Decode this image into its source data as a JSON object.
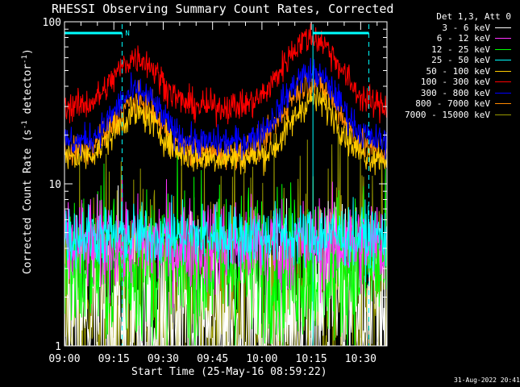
{
  "page": {
    "title": "RHESSI Observing Summary Count Rates, Corrected",
    "timestamp": "31-Aug-2022 20:41"
  },
  "chart_data": {
    "type": "line",
    "title": "RHESSI Observing Summary Count Rates, Corrected",
    "xlabel": "Start Time (25-May-16 08:59:22)",
    "ylabel_main": "Corrected Count Rate (s",
    "ylabel_sup1": "-1",
    "ylabel_mid": " detector",
    "ylabel_sup2": "-1",
    "ylabel_end": ")",
    "yscale": "log",
    "ylim": [
      1,
      100
    ],
    "xlim_minutes": [
      0,
      98
    ],
    "x_ticks": [
      "09:00",
      "09:15",
      "09:30",
      "09:45",
      "10:00",
      "10:15",
      "10:30"
    ],
    "x_tick_minutes": [
      0,
      15,
      30,
      45,
      60,
      75,
      90
    ],
    "y_ticks": [
      "1",
      "10",
      "100"
    ],
    "y_tick_values": [
      1,
      10,
      100
    ],
    "legend_title": "Det 1,3, Att 0",
    "legend_position": "top-right",
    "night_marker": "N",
    "night_intervals_minutes": [
      [
        0,
        17.5
      ],
      [
        75.5,
        92.5
      ]
    ],
    "series": [
      {
        "name": "3 - 6 keV",
        "color": "#ffffff",
        "base": 1.4,
        "peaks": [
          [
            27,
            1.5,
            6
          ],
          [
            82,
            2.5,
            6
          ]
        ],
        "noise": 0.35
      },
      {
        "name": "6 - 12 keV",
        "color": "#ff33ff",
        "base": 4.2,
        "peaks": [
          [
            22,
            1.4,
            6
          ],
          [
            75,
            1.8,
            5
          ]
        ],
        "noise": 0.15
      },
      {
        "name": "12 - 25 keV",
        "color": "#00ff00",
        "base": 3.2,
        "peaks": [
          [
            25,
            1.3,
            7
          ],
          [
            78,
            2.6,
            6
          ]
        ],
        "noise": 0.25
      },
      {
        "name": "25 - 50 keV",
        "color": "#00ffff",
        "base": 4.8,
        "peaks": [
          [
            24,
            2.0,
            6
          ],
          [
            78,
            3.0,
            6
          ]
        ],
        "noise": 0.1
      },
      {
        "name": "50 - 100 keV",
        "color": "#ffcc00",
        "base": 14.5,
        "peaks": [
          [
            22,
            27,
            6
          ],
          [
            76,
            33,
            6
          ]
        ],
        "noise": 0.05
      },
      {
        "name": "100 - 300 keV",
        "color": "#ff0000",
        "base": 30,
        "peaks": [
          [
            22,
            60,
            6
          ],
          [
            75,
            80,
            7
          ]
        ],
        "noise": 0.05
      },
      {
        "name": "300 - 800 keV",
        "color": "#0000ff",
        "base": 18,
        "peaks": [
          [
            22,
            37,
            6
          ],
          [
            75,
            48,
            7
          ]
        ],
        "noise": 0.05
      },
      {
        "name": "800 - 7000 keV",
        "color": "#ff8800",
        "base": 15.5,
        "peaks": [
          [
            22,
            32,
            6
          ],
          [
            75,
            42,
            7
          ]
        ],
        "noise": 0.05
      },
      {
        "name": "7000 - 15000 keV",
        "color": "#999900",
        "base": 1.6,
        "peaks": [
          [
            27,
            1.5,
            7
          ],
          [
            82,
            2.5,
            6
          ]
        ],
        "noise": 0.45
      }
    ]
  }
}
